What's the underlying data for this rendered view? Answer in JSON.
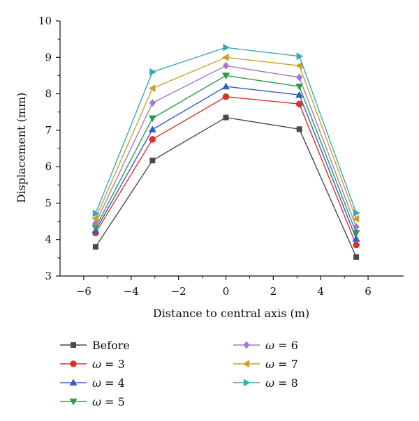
{
  "chart_data": {
    "type": "line",
    "title": "",
    "xlabel": "Distance to central axis (m)",
    "ylabel": "Displacement (mm)",
    "xlim": [
      -7,
      7.5
    ],
    "ylim": [
      3,
      10
    ],
    "xticks": [
      -6,
      -4,
      -2,
      0,
      2,
      4,
      6
    ],
    "xtick_labels": [
      "−6",
      "−4",
      "−2",
      "0",
      "2",
      "4",
      "6"
    ],
    "yticks": [
      3,
      4,
      5,
      6,
      7,
      8,
      9,
      10
    ],
    "ytick_labels": [
      "3",
      "4",
      "5",
      "6",
      "7",
      "8",
      "9",
      "10"
    ],
    "grid": false,
    "legend_position": "bottom",
    "x": [
      -5.5,
      -3.1,
      0,
      3.1,
      5.5
    ],
    "series": [
      {
        "name": "Before",
        "label_prefix": "",
        "label_value": "Before",
        "marker": "square",
        "color": "#4a4a4a",
        "values": [
          3.8,
          6.17,
          7.35,
          7.03,
          3.52
        ]
      },
      {
        "name": "ω = 3",
        "label_prefix": "ω",
        "label_value": " = 3",
        "marker": "circle",
        "color": "#d9342b",
        "values": [
          4.18,
          6.75,
          7.92,
          7.72,
          3.85
        ]
      },
      {
        "name": "ω = 4",
        "label_prefix": "ω",
        "label_value": " = 4",
        "marker": "triangle-up",
        "color": "#2f5fbf",
        "values": [
          4.25,
          7.02,
          8.2,
          7.97,
          4.02
        ]
      },
      {
        "name": "ω = 5",
        "label_prefix": "ω",
        "label_value": " = 5",
        "marker": "triangle-down",
        "color": "#2a9a4a",
        "values": [
          4.33,
          7.33,
          8.5,
          8.2,
          4.18
        ]
      },
      {
        "name": "ω = 6",
        "label_prefix": "ω",
        "label_value": " = 6",
        "marker": "diamond",
        "color": "#a678c8",
        "values": [
          4.45,
          7.75,
          8.77,
          8.45,
          4.35
        ]
      },
      {
        "name": "ω = 7",
        "label_prefix": "ω",
        "label_value": " = 7",
        "marker": "triangle-left",
        "color": "#c9a227",
        "values": [
          4.58,
          8.15,
          9.0,
          8.77,
          4.57
        ]
      },
      {
        "name": "ω = 8",
        "label_prefix": "ω",
        "label_value": " = 8",
        "marker": "triangle-right",
        "color": "#3aa8b8",
        "values": [
          4.72,
          8.6,
          9.27,
          9.03,
          4.73
        ]
      }
    ]
  }
}
